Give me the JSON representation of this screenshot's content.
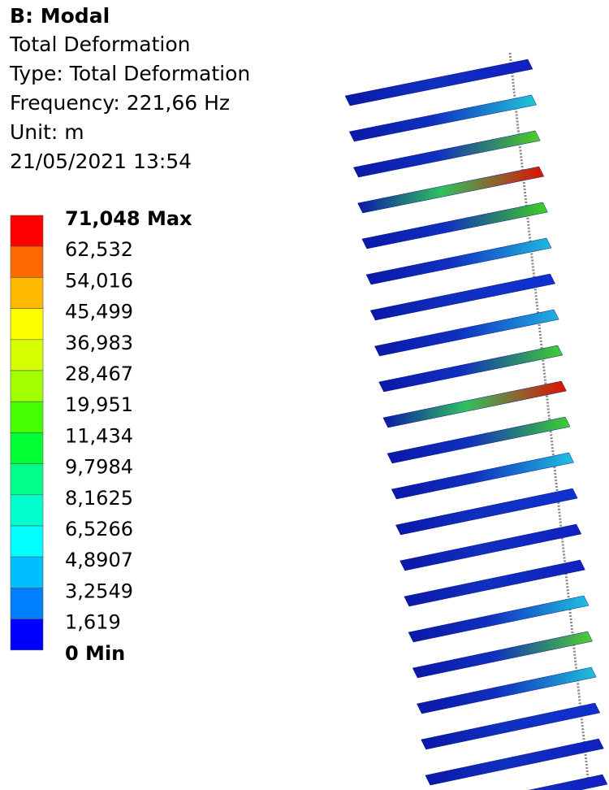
{
  "header": {
    "title": "B: Modal",
    "lines": [
      "Total Deformation",
      "Type: Total Deformation",
      "Frequency: 221,66 Hz",
      "Unit: m",
      "21/05/2021 13:54"
    ]
  },
  "legend": {
    "labels": [
      "71,048 Max",
      "62,532",
      "54,016",
      "45,499",
      "36,983",
      "28,467",
      "19,951",
      "11,434",
      "9,7984",
      "8,1625",
      "6,5266",
      "4,8907",
      "3,2549",
      "1,619",
      "0 Min"
    ]
  }
}
